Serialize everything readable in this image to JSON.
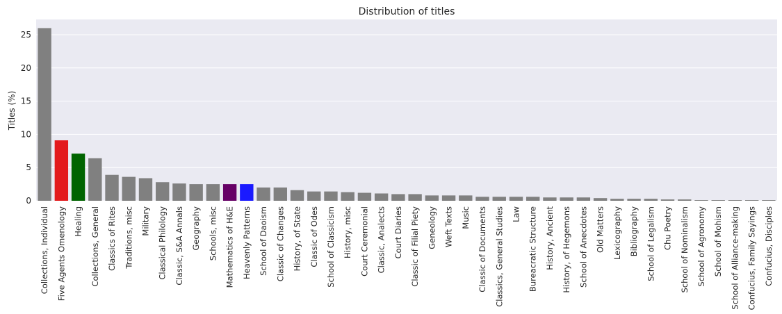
{
  "chart_data": {
    "type": "bar",
    "title": "Distribution of titles",
    "xlabel": "",
    "ylabel": "Titles (%)",
    "ylim": [
      0,
      27.3
    ],
    "yticks": [
      0,
      5,
      10,
      15,
      20,
      25
    ],
    "grid": true,
    "legend": "none",
    "default_color": "#808080",
    "background_color": "#eaeaf2",
    "categories": [
      "Collections, Individual",
      "Five Agents Omenology",
      "Healing",
      "Collections, General",
      "Classics of Rites",
      "Traditions, misc",
      "Military",
      "Classical Philology",
      "Classic, S&A Annals",
      "Geography",
      "Schools, misc",
      "Mathematics of H&E",
      "Heavenly Patterns",
      "School of Daoism",
      "Classic of Changes",
      "History, of State",
      "Classic of Odes",
      "School of Classicism",
      "History, misc",
      "Court Ceremonial",
      "Classic, Analects",
      "Court Diaries",
      "Classic of Filial Piety",
      "Geneology",
      "Weft Texts",
      "Music",
      "Classic of Documents",
      "Classics, General Studies",
      "Law",
      "Bureacratic Structure",
      "History, Ancient",
      "History, of Hegemons",
      "School of Anecdotes",
      "Old Matters",
      "Lexicography",
      "Bibliography",
      "School of Legalism",
      "Chu Poetry",
      "School of Nominalism",
      "School of Agronomy",
      "School of Mohism",
      "School of Alliance-making",
      "Confucius, Family Sayings",
      "Confucius, Disciples"
    ],
    "values": [
      26.0,
      9.1,
      7.1,
      6.4,
      3.9,
      3.6,
      3.4,
      2.8,
      2.6,
      2.5,
      2.5,
      2.5,
      2.5,
      2.0,
      2.0,
      1.6,
      1.4,
      1.4,
      1.3,
      1.2,
      1.1,
      1.0,
      1.0,
      0.8,
      0.8,
      0.8,
      0.6,
      0.6,
      0.6,
      0.6,
      0.5,
      0.5,
      0.5,
      0.4,
      0.3,
      0.3,
      0.3,
      0.2,
      0.2,
      0.1,
      0.1,
      0.1,
      0.1,
      0.1
    ],
    "highlight_colors": {
      "Five Agents Omenology": "#e31a1c",
      "Healing": "#006400",
      "Mathematics of H&E": "#660066",
      "Heavenly Patterns": "#1a1aff"
    }
  }
}
